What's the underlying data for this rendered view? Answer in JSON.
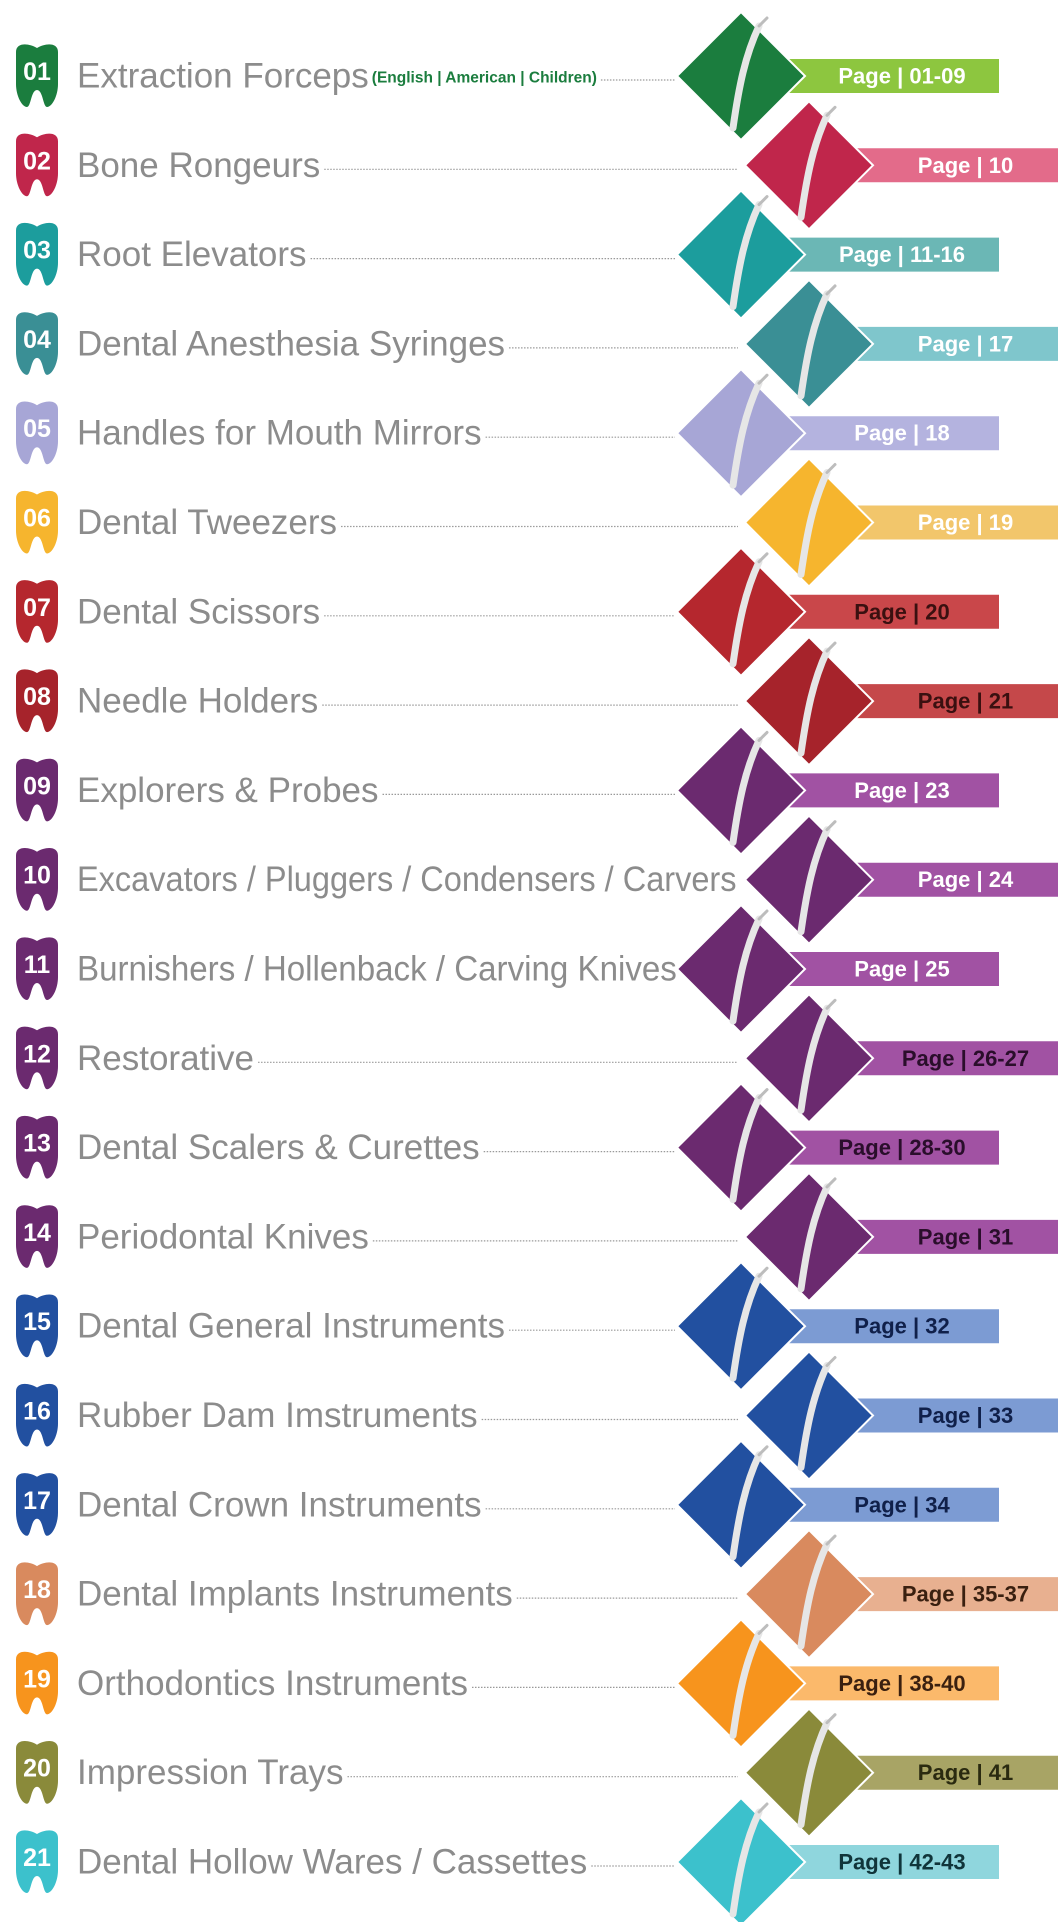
{
  "items": [
    {
      "number": "01",
      "title": "Extraction Forceps",
      "subtitle": "(English | American | Children)",
      "page": "Page | 01-09",
      "color": "#1b7d3e",
      "bar_color": "#8dc63f",
      "text_color": "#ffffff"
    },
    {
      "number": "02",
      "title": "Bone Rongeurs",
      "page": "Page | 10",
      "color": "#c0264b",
      "bar_color": "#e36b8a",
      "text_color": "#ffffff"
    },
    {
      "number": "03",
      "title": "Root Elevators",
      "page": "Page | 11-16",
      "color": "#1c9d9d",
      "bar_color": "#6bb7b5",
      "text_color": "#ffffff"
    },
    {
      "number": "04",
      "title": "Dental Anesthesia Syringes",
      "page": "Page | 17",
      "color": "#3a8f95",
      "bar_color": "#7fc6cc",
      "text_color": "#ffffff"
    },
    {
      "number": "05",
      "title": "Handles for Mouth Mirrors",
      "page": "Page | 18",
      "color": "#a7a6d6",
      "bar_color": "#b4b3df",
      "text_color": "#ffffff"
    },
    {
      "number": "06",
      "title": "Dental Tweezers",
      "page": "Page | 19",
      "color": "#f6b52e",
      "bar_color": "#f2c66b",
      "text_color": "#ffffff"
    },
    {
      "number": "07",
      "title": "Dental Scissors",
      "page": "Page | 20",
      "color": "#b5272e",
      "bar_color": "#c9474a",
      "text_color": "#3a1010"
    },
    {
      "number": "08",
      "title": "Needle Holders",
      "page": "Page | 21",
      "color": "#a6232b",
      "bar_color": "#c5484a",
      "text_color": "#3a1010"
    },
    {
      "number": "09",
      "title": "Explorers & Probes",
      "page": "Page | 23",
      "color": "#6b2a6f",
      "bar_color": "#a152a3",
      "text_color": "#ffffff"
    },
    {
      "number": "10",
      "title": "Excavators / Pluggers / Condensers / Carvers",
      "page": "Page | 24",
      "color": "#6b2a6f",
      "bar_color": "#a152a3",
      "text_color": "#ffffff"
    },
    {
      "number": "11",
      "title": "Burnishers / Hollenback / Carving Knives",
      "page": "Page | 25",
      "color": "#6b2a6f",
      "bar_color": "#a152a3",
      "text_color": "#ffffff"
    },
    {
      "number": "12",
      "title": "Restorative",
      "page": "Page | 26-27",
      "color": "#6b2a6f",
      "bar_color": "#a152a3",
      "text_color": "#2a0e2b"
    },
    {
      "number": "13",
      "title": "Dental Scalers & Curettes",
      "page": "Page | 28-30",
      "color": "#6b2a6f",
      "bar_color": "#a152a3",
      "text_color": "#2a0e2b"
    },
    {
      "number": "14",
      "title": "Periodontal Knives",
      "page": "Page | 31",
      "color": "#6b2a6f",
      "bar_color": "#a152a3",
      "text_color": "#2a0e2b"
    },
    {
      "number": "15",
      "title": "Dental General Instruments",
      "page": "Page | 32",
      "color": "#2250a0",
      "bar_color": "#7c9bd3",
      "text_color": "#10204a"
    },
    {
      "number": "16",
      "title": "Rubber Dam Imstruments",
      "page": "Page | 33",
      "color": "#2250a0",
      "bar_color": "#7c9bd3",
      "text_color": "#10204a"
    },
    {
      "number": "17",
      "title": "Dental Crown Instruments",
      "page": "Page | 34",
      "color": "#2250a0",
      "bar_color": "#7c9bd3",
      "text_color": "#10204a"
    },
    {
      "number": "18",
      "title": "Dental Implants Instruments",
      "page": "Page | 35-37",
      "color": "#d98a5e",
      "bar_color": "#e8b090",
      "text_color": "#3a2010"
    },
    {
      "number": "19",
      "title": "Orthodontics Instruments",
      "page": "Page | 38-40",
      "color": "#f7941d",
      "bar_color": "#fbb96b",
      "text_color": "#3a2010"
    },
    {
      "number": "20",
      "title": "Impression Trays",
      "page": "Page | 41",
      "color": "#8a8a3a",
      "bar_color": "#a8a465",
      "text_color": "#2a2a10"
    },
    {
      "number": "21",
      "title": "Dental Hollow Wares / Cassettes",
      "page": "Page | 42-43",
      "color": "#3cc1cc",
      "bar_color": "#8fd6dd",
      "text_color": "#10353a"
    }
  ]
}
